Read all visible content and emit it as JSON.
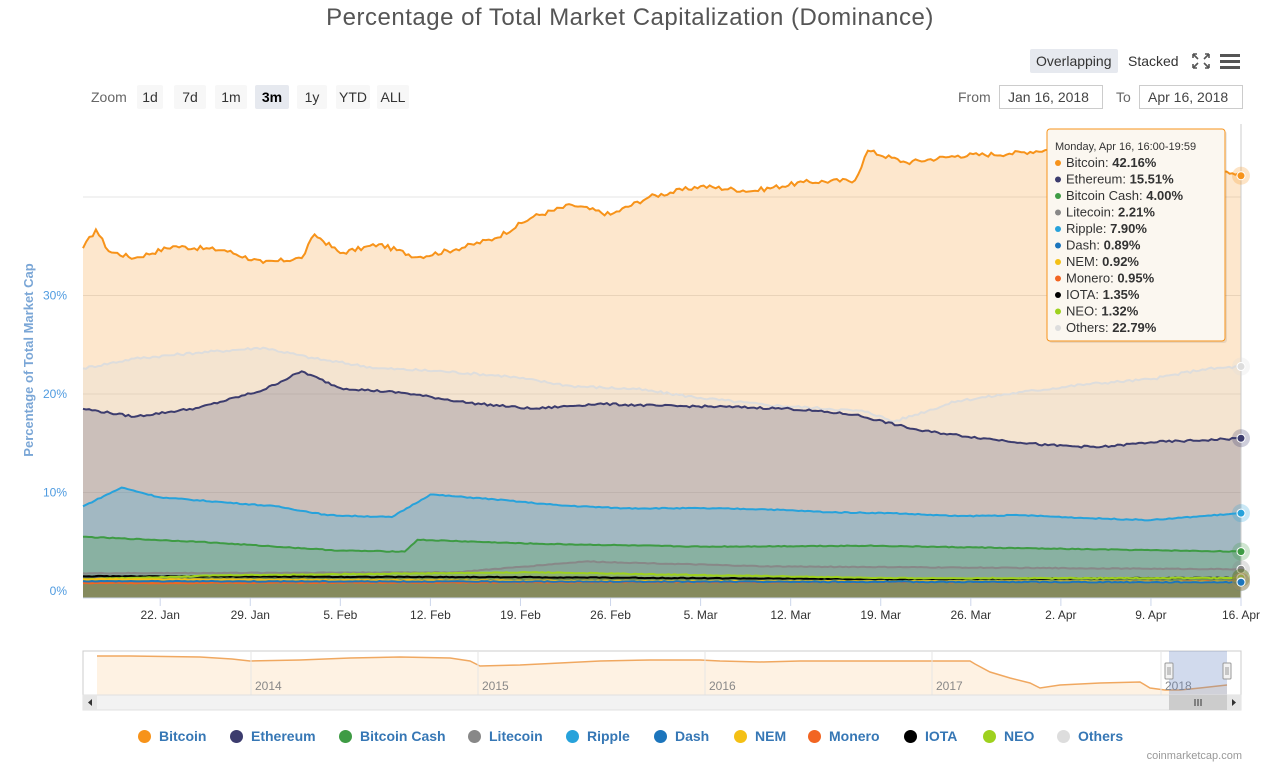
{
  "title": "Percentage of Total Market Capitalization (Dominance)",
  "toolbar": {
    "overlapping": "Overlapping",
    "stacked": "Stacked"
  },
  "zoom": {
    "label": "Zoom",
    "buttons": [
      "1d",
      "7d",
      "1m",
      "3m",
      "1y",
      "YTD",
      "ALL"
    ],
    "active": "3m"
  },
  "range": {
    "from_label": "From",
    "from_value": "Jan 16, 2018",
    "to_label": "To",
    "to_value": "Apr 16, 2018"
  },
  "credit": "coinmarketcap.com",
  "tooltip": {
    "header": "Monday, Apr 16, 16:00-19:59",
    "rows": [
      {
        "name": "Bitcoin",
        "value": "42.16%"
      },
      {
        "name": "Ethereum",
        "value": "15.51%"
      },
      {
        "name": "Bitcoin Cash",
        "value": "4.00%"
      },
      {
        "name": "Litecoin",
        "value": "2.21%"
      },
      {
        "name": "Ripple",
        "value": "7.90%"
      },
      {
        "name": "Dash",
        "value": "0.89%"
      },
      {
        "name": "NEM",
        "value": "0.92%"
      },
      {
        "name": "Monero",
        "value": "0.95%"
      },
      {
        "name": "IOTA",
        "value": "1.35%"
      },
      {
        "name": "NEO",
        "value": "1.32%"
      },
      {
        "name": "Others",
        "value": "22.79%"
      }
    ]
  },
  "navigator": {
    "year_labels": [
      "2014",
      "2015",
      "2016",
      "2017",
      "2018"
    ]
  },
  "chart_data": {
    "type": "area",
    "title": "Percentage of Total Market Capitalization (Dominance)",
    "ylabel": "Percentage of Total Market Cap",
    "xlabel": "",
    "ylim": [
      0,
      45
    ],
    "yticks": [
      0,
      10,
      20,
      30
    ],
    "ytick_labels": [
      "0%",
      "10%",
      "20%",
      "30%"
    ],
    "x_start": "2018-01-16",
    "x_end": "2018-04-16",
    "xticks": [
      "2018-01-22",
      "2018-01-29",
      "2018-02-05",
      "2018-02-12",
      "2018-02-19",
      "2018-02-26",
      "2018-03-05",
      "2018-03-12",
      "2018-03-19",
      "2018-03-26",
      "2018-04-02",
      "2018-04-09",
      "2018-04-16"
    ],
    "xtick_labels": [
      "22. Jan",
      "29. Jan",
      "5. Feb",
      "12. Feb",
      "19. Feb",
      "26. Feb",
      "5. Mar",
      "12. Mar",
      "19. Mar",
      "26. Mar",
      "2. Apr",
      "9. Apr",
      "16. Apr"
    ],
    "grid": true,
    "legend_position": "bottom",
    "series": [
      {
        "name": "Bitcoin",
        "color": "#f7931a",
        "x": [
          "2018-01-16",
          "2018-01-17",
          "2018-01-18",
          "2018-01-20",
          "2018-01-23",
          "2018-01-27",
          "2018-01-30",
          "2018-02-02",
          "2018-02-03",
          "2018-02-05",
          "2018-02-08",
          "2018-02-11",
          "2018-02-14",
          "2018-02-17",
          "2018-02-20",
          "2018-02-23",
          "2018-02-26",
          "2018-03-01",
          "2018-03-05",
          "2018-03-09",
          "2018-03-13",
          "2018-03-17",
          "2018-03-18",
          "2018-03-21",
          "2018-03-25",
          "2018-03-29",
          "2018-04-01",
          "2018-04-03",
          "2018-04-06",
          "2018-04-09",
          "2018-04-12",
          "2018-04-14",
          "2018-04-16"
        ],
        "values": [
          34.8,
          36.7,
          34.5,
          33.8,
          35.0,
          34.6,
          33.3,
          33.8,
          36.2,
          34.3,
          35.2,
          33.9,
          34.7,
          35.8,
          38.0,
          39.2,
          38.2,
          40.0,
          41.1,
          40.6,
          41.5,
          41.7,
          44.7,
          43.5,
          44.2,
          44.4,
          44.8,
          44.0,
          44.3,
          44.4,
          43.5,
          43.1,
          42.16
        ]
      },
      {
        "name": "Others",
        "color": "#dddddd",
        "x": [
          "2018-01-16",
          "2018-01-20",
          "2018-01-25",
          "2018-01-30",
          "2018-02-03",
          "2018-02-08",
          "2018-02-13",
          "2018-02-18",
          "2018-02-23",
          "2018-02-28",
          "2018-03-05",
          "2018-03-10",
          "2018-03-15",
          "2018-03-18",
          "2018-03-20",
          "2018-03-25",
          "2018-03-30",
          "2018-04-04",
          "2018-04-09",
          "2018-04-13",
          "2018-04-16"
        ],
        "values": [
          22.6,
          23.6,
          24.2,
          24.7,
          23.6,
          22.6,
          22.3,
          21.8,
          20.8,
          20.5,
          19.6,
          18.9,
          18.5,
          18.2,
          17.2,
          19.3,
          20.2,
          21.0,
          21.5,
          22.5,
          22.79
        ]
      },
      {
        "name": "Ethereum",
        "color": "#3c3c6e",
        "x": [
          "2018-01-16",
          "2018-01-20",
          "2018-01-25",
          "2018-01-30",
          "2018-02-02",
          "2018-02-05",
          "2018-02-10",
          "2018-02-15",
          "2018-02-20",
          "2018-02-25",
          "2018-03-02",
          "2018-03-07",
          "2018-03-12",
          "2018-03-17",
          "2018-03-22",
          "2018-03-27",
          "2018-04-01",
          "2018-04-05",
          "2018-04-09",
          "2018-04-13",
          "2018-04-16"
        ],
        "values": [
          18.5,
          17.7,
          18.6,
          20.4,
          22.3,
          20.6,
          20.1,
          19.1,
          18.5,
          19.0,
          18.8,
          18.7,
          18.5,
          17.9,
          16.3,
          15.5,
          14.8,
          14.6,
          15.1,
          15.3,
          15.51
        ]
      },
      {
        "name": "Ripple",
        "color": "#27a2db",
        "x": [
          "2018-01-16",
          "2018-01-19",
          "2018-01-22",
          "2018-01-27",
          "2018-01-31",
          "2018-02-04",
          "2018-02-09",
          "2018-02-12",
          "2018-02-17",
          "2018-02-22",
          "2018-02-27",
          "2018-03-05",
          "2018-03-10",
          "2018-03-15",
          "2018-03-20",
          "2018-03-25",
          "2018-03-30",
          "2018-04-04",
          "2018-04-09",
          "2018-04-13",
          "2018-04-16"
        ],
        "values": [
          8.6,
          10.5,
          9.5,
          9.0,
          8.6,
          7.7,
          7.5,
          9.8,
          9.3,
          8.7,
          8.4,
          8.4,
          8.3,
          8.0,
          7.9,
          7.6,
          7.7,
          7.4,
          7.2,
          7.6,
          7.9
        ]
      },
      {
        "name": "Bitcoin Cash",
        "color": "#3e9b44",
        "x": [
          "2018-01-16",
          "2018-01-25",
          "2018-02-05",
          "2018-02-10",
          "2018-02-11",
          "2018-02-20",
          "2018-03-05",
          "2018-03-18",
          "2018-04-01",
          "2018-04-16"
        ],
        "values": [
          5.5,
          5.0,
          4.1,
          4.0,
          5.2,
          4.8,
          4.5,
          4.6,
          4.3,
          4.0
        ]
      },
      {
        "name": "Litecoin",
        "color": "#888888",
        "x": [
          "2018-01-16",
          "2018-02-14",
          "2018-02-24",
          "2018-03-10",
          "2018-04-16"
        ],
        "values": [
          1.8,
          1.9,
          3.0,
          2.5,
          2.21
        ]
      },
      {
        "name": "IOTA",
        "color": "#000000",
        "x": [
          "2018-01-16",
          "2018-02-20",
          "2018-03-20",
          "2018-04-16"
        ],
        "values": [
          1.5,
          1.4,
          1.2,
          1.35
        ]
      },
      {
        "name": "NEO",
        "color": "#9ed11e",
        "x": [
          "2018-01-16",
          "2018-01-27",
          "2018-02-20",
          "2018-03-20",
          "2018-04-16"
        ],
        "values": [
          1.2,
          1.6,
          1.9,
          1.3,
          1.32
        ]
      },
      {
        "name": "Monero",
        "color": "#f26522",
        "x": [
          "2018-01-16",
          "2018-03-01",
          "2018-04-16"
        ],
        "values": [
          0.8,
          0.9,
          0.95
        ]
      },
      {
        "name": "NEM",
        "color": "#f4c015",
        "x": [
          "2018-01-16",
          "2018-03-01",
          "2018-04-16"
        ],
        "values": [
          1.2,
          1.0,
          0.92
        ]
      },
      {
        "name": "Dash",
        "color": "#1c75bc",
        "x": [
          "2018-01-16",
          "2018-03-01",
          "2018-04-16"
        ],
        "values": [
          1.0,
          0.95,
          0.89
        ]
      }
    ]
  },
  "legend": [
    {
      "name": "Bitcoin",
      "color": "#f7931a"
    },
    {
      "name": "Ethereum",
      "color": "#3c3c6e"
    },
    {
      "name": "Bitcoin Cash",
      "color": "#3e9b44"
    },
    {
      "name": "Litecoin",
      "color": "#888888"
    },
    {
      "name": "Ripple",
      "color": "#27a2db"
    },
    {
      "name": "Dash",
      "color": "#1c75bc"
    },
    {
      "name": "NEM",
      "color": "#f4c015"
    },
    {
      "name": "Monero",
      "color": "#f26522"
    },
    {
      "name": "IOTA",
      "color": "#000000"
    },
    {
      "name": "NEO",
      "color": "#9ed11e"
    },
    {
      "name": "Others",
      "color": "#dddddd"
    }
  ]
}
